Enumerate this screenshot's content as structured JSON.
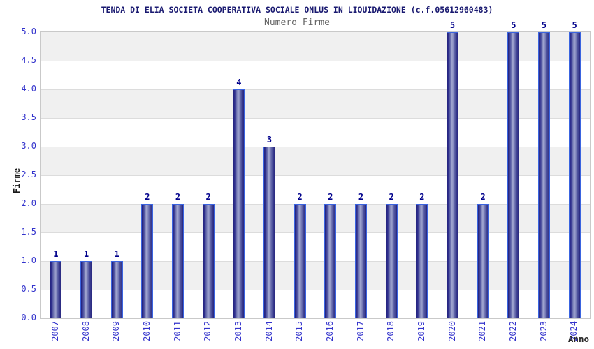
{
  "chart_data": {
    "type": "bar",
    "title": "TENDA DI ELIA SOCIETA COOPERATIVA SOCIALE ONLUS IN LIQUIDAZIONE (c.f.05612960483)",
    "subtitle": "Numero Firme",
    "xlabel": "Anno",
    "ylabel": "Firme",
    "categories": [
      "2007",
      "2008",
      "2009",
      "2010",
      "2011",
      "2012",
      "2013",
      "2014",
      "2015",
      "2016",
      "2017",
      "2018",
      "2019",
      "2020",
      "2021",
      "2022",
      "2023",
      "2024"
    ],
    "values": [
      1,
      1,
      1,
      2,
      2,
      2,
      4,
      3,
      2,
      2,
      2,
      2,
      2,
      5,
      2,
      5,
      5,
      5
    ],
    "ylim": [
      0,
      5
    ],
    "ytick_step": 0.5,
    "yticks": [
      "0.0",
      "0.5",
      "1.0",
      "1.5",
      "2.0",
      "2.5",
      "3.0",
      "3.5",
      "4.0",
      "4.5",
      "5.0"
    ],
    "grid": "horizontal alternating bands",
    "legend_position": "none",
    "bar_value_labels": [
      "1",
      "1",
      "1",
      "2",
      "2",
      "2",
      "4",
      "3",
      "2",
      "2",
      "2",
      "2",
      "2",
      "5",
      "2",
      "5",
      "5",
      "5"
    ]
  },
  "colors": {
    "title_text": "#191970",
    "subtitle_text": "#666666",
    "tick_label_text": "#3333cc",
    "bar_value_label_text": "#00008b",
    "axis_label_text": "#1a1a1a",
    "bar_edge": "#3a64e0",
    "bar_dark": "#23237e",
    "bar_light": "#a3a8d2",
    "band_gray": "#f0f0f0",
    "band_white": "#ffffff",
    "gridline": "#dcdcdc",
    "plot_border": "#c9c9c9",
    "background": "#ffffff"
  }
}
